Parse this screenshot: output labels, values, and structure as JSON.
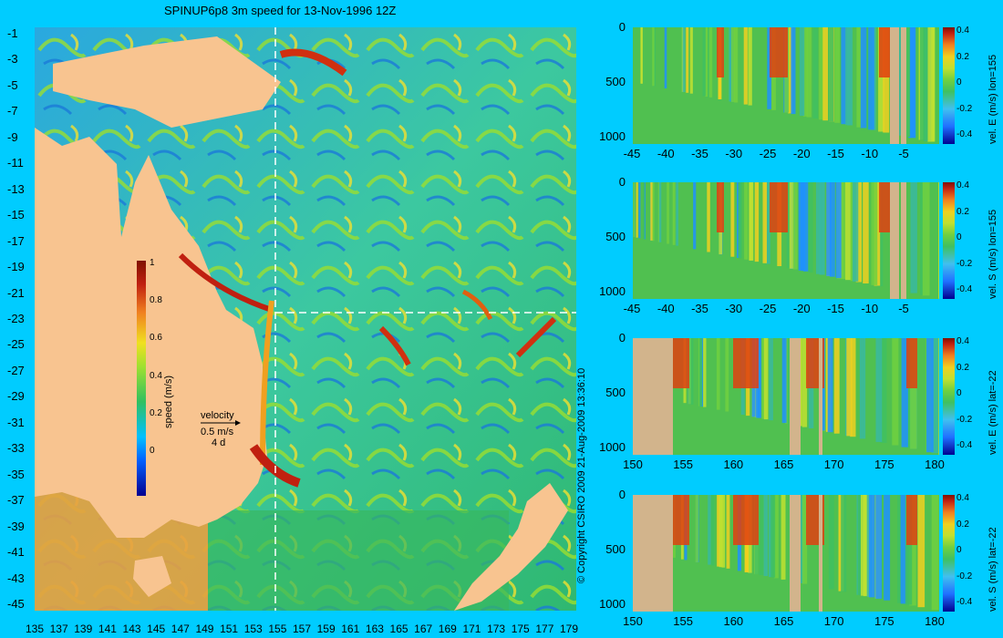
{
  "title": "SPINUP6p8 3m speed for 13-Nov-1996 12Z",
  "map": {
    "lat_labels": [
      "-1",
      "-3",
      "-5",
      "-7",
      "-9",
      "-11",
      "-13",
      "-15",
      "-17",
      "-19",
      "-21",
      "-23",
      "-25",
      "-27",
      "-29",
      "-31",
      "-33",
      "-35",
      "-37",
      "-39",
      "-41",
      "-43",
      "-45"
    ],
    "lon_labels": [
      "135",
      "137",
      "139",
      "141",
      "143",
      "145",
      "147",
      "149",
      "151",
      "153",
      "155",
      "157",
      "159",
      "161",
      "163",
      "165",
      "167",
      "169",
      "171",
      "173",
      "175",
      "177",
      "179"
    ],
    "colorbar": {
      "label": "speed (m/s)",
      "ticks": [
        "1",
        "0.8",
        "0.6",
        "0.4",
        "0.2",
        "0"
      ]
    },
    "legend": {
      "title": "velocity",
      "speed": "0.5 m/s",
      "duration": "4 d"
    },
    "colors": {
      "land": "#f8c490",
      "background": "#00ccff"
    }
  },
  "copyright": "© Copyright CSIRO 2009   21-Aug-2009 13:36:10",
  "panels": [
    {
      "var_label": "vel. E (m/s) lon=155",
      "yticks": [
        "0",
        "500",
        "1000"
      ],
      "xticks": [
        "-45",
        "-40",
        "-35",
        "-30",
        "-25",
        "-20",
        "-15",
        "-10",
        "-5"
      ],
      "cticks": [
        "0.4",
        "0.2",
        "0",
        "-0.2",
        "-0.4"
      ]
    },
    {
      "var_label": "vel. S (m/s) lon=155",
      "yticks": [
        "0",
        "500",
        "1000"
      ],
      "xticks": [
        "-45",
        "-40",
        "-35",
        "-30",
        "-25",
        "-20",
        "-15",
        "-10",
        "-5"
      ],
      "cticks": [
        "0.4",
        "0.2",
        "0",
        "-0.2",
        "-0.4"
      ]
    },
    {
      "var_label": "vel. E (m/s) lat=-22",
      "yticks": [
        "0",
        "500",
        "1000"
      ],
      "xticks": [
        "150",
        "155",
        "160",
        "165",
        "170",
        "175",
        "180"
      ],
      "cticks": [
        "0.4",
        "0.2",
        "0",
        "-0.2",
        "-0.4"
      ]
    },
    {
      "var_label": "vel. S (m/s) lat=-22",
      "yticks": [
        "0",
        "500",
        "1000"
      ],
      "xticks": [
        "150",
        "155",
        "160",
        "165",
        "170",
        "175",
        "180"
      ],
      "cticks": [
        "0.4",
        "0.2",
        "0",
        "-0.2",
        "-0.4"
      ]
    }
  ]
}
